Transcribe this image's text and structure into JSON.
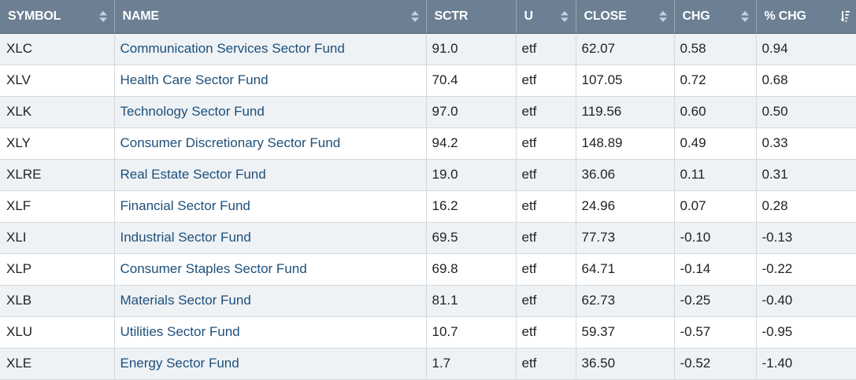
{
  "columns": [
    {
      "label": "SYMBOL",
      "sort_icon": "sort-both-icon"
    },
    {
      "label": "NAME",
      "sort_icon": "sort-both-icon"
    },
    {
      "label": "SCTR",
      "sort_icon": ""
    },
    {
      "label": "U",
      "sort_icon": "sort-both-icon"
    },
    {
      "label": "CLOSE",
      "sort_icon": "sort-both-icon"
    },
    {
      "label": "CHG",
      "sort_icon": "sort-both-icon"
    },
    {
      "label": "% CHG",
      "sort_icon": "sort-descending-icon"
    }
  ],
  "rows": [
    {
      "symbol": "XLC",
      "name": "Communication Services Sector Fund",
      "sctr": "91.0",
      "u": "etf",
      "close": "62.07",
      "chg": "0.58",
      "pchg": "0.94"
    },
    {
      "symbol": "XLV",
      "name": "Health Care Sector Fund",
      "sctr": "70.4",
      "u": "etf",
      "close": "107.05",
      "chg": "0.72",
      "pchg": "0.68"
    },
    {
      "symbol": "XLK",
      "name": "Technology Sector Fund",
      "sctr": "97.0",
      "u": "etf",
      "close": "119.56",
      "chg": "0.60",
      "pchg": "0.50"
    },
    {
      "symbol": "XLY",
      "name": "Consumer Discretionary Sector Fund",
      "sctr": "94.2",
      "u": "etf",
      "close": "148.89",
      "chg": "0.49",
      "pchg": "0.33"
    },
    {
      "symbol": "XLRE",
      "name": "Real Estate Sector Fund",
      "sctr": "19.0",
      "u": "etf",
      "close": "36.06",
      "chg": "0.11",
      "pchg": "0.31"
    },
    {
      "symbol": "XLF",
      "name": "Financial Sector Fund",
      "sctr": "16.2",
      "u": "etf",
      "close": "24.96",
      "chg": "0.07",
      "pchg": "0.28"
    },
    {
      "symbol": "XLI",
      "name": "Industrial Sector Fund",
      "sctr": "69.5",
      "u": "etf",
      "close": "77.73",
      "chg": "-0.10",
      "pchg": "-0.13"
    },
    {
      "symbol": "XLP",
      "name": "Consumer Staples Sector Fund",
      "sctr": "69.8",
      "u": "etf",
      "close": "64.71",
      "chg": "-0.14",
      "pchg": "-0.22"
    },
    {
      "symbol": "XLB",
      "name": "Materials Sector Fund",
      "sctr": "81.1",
      "u": "etf",
      "close": "62.73",
      "chg": "-0.25",
      "pchg": "-0.40"
    },
    {
      "symbol": "XLU",
      "name": "Utilities Sector Fund",
      "sctr": "10.7",
      "u": "etf",
      "close": "59.37",
      "chg": "-0.57",
      "pchg": "-0.95"
    },
    {
      "symbol": "XLE",
      "name": "Energy Sector Fund",
      "sctr": "1.7",
      "u": "etf",
      "close": "36.50",
      "chg": "-0.52",
      "pchg": "-1.40"
    }
  ],
  "colors": {
    "header_bg": "#6c7f93",
    "row_alt_bg": "#eef2f5",
    "name_link": "#1d4f7a"
  }
}
